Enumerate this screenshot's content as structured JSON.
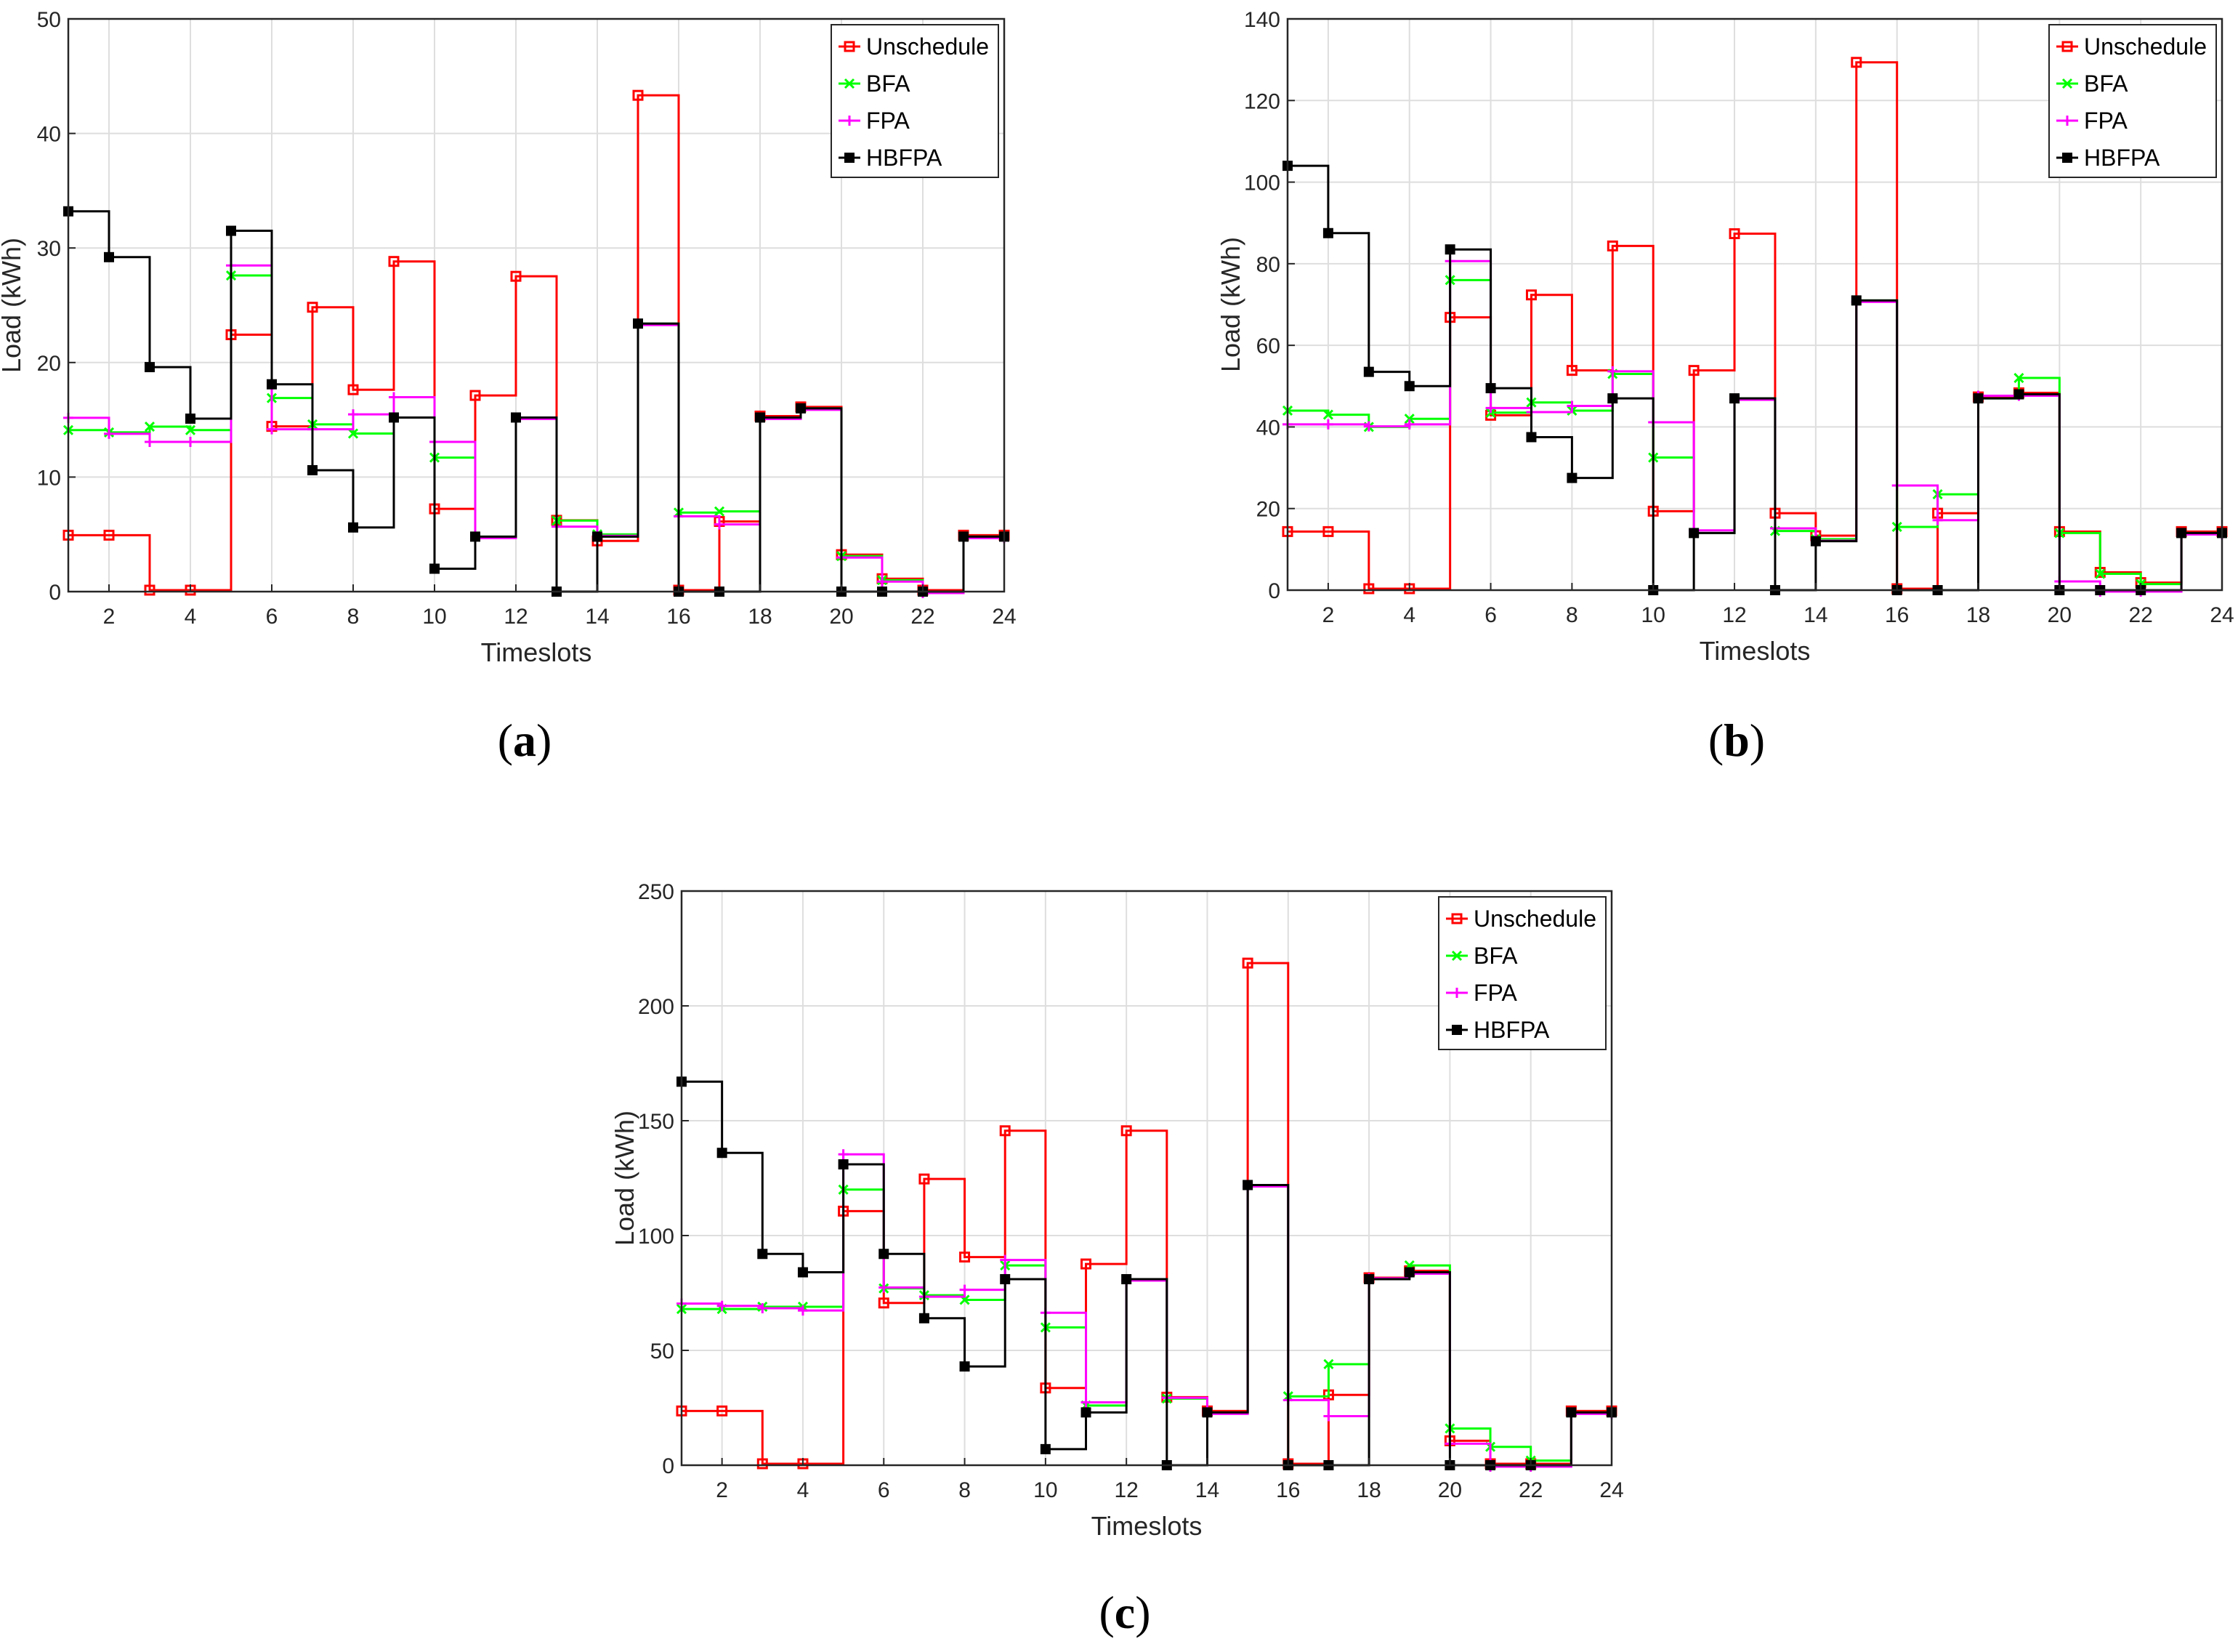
{
  "series_colors": {
    "Unschedule": "#ff0000",
    "BFA": "#00ff00",
    "FPA": "#ff00ff",
    "HBFPA": "#000000"
  },
  "chart_data": [
    {
      "type": "line",
      "panel_label": "a",
      "title": "",
      "xlabel": "Timeslots",
      "ylabel": "Load (kWh)",
      "xlim": [
        1,
        24
      ],
      "ylim": [
        0,
        50
      ],
      "xticks": [
        2,
        4,
        6,
        8,
        10,
        12,
        14,
        16,
        18,
        20,
        22,
        24
      ],
      "yticks": [
        0,
        10,
        20,
        30,
        40,
        50
      ],
      "grid": true,
      "legend_position": "top-right",
      "x": [
        1,
        2,
        3,
        4,
        5,
        6,
        7,
        8,
        9,
        10,
        11,
        12,
        13,
        14,
        15,
        16,
        17,
        18,
        19,
        20,
        21,
        22,
        23,
        24
      ],
      "series": [
        {
          "name": "Unschedule",
          "values": [
            4.8,
            4.8,
            0,
            0,
            22.3,
            14.3,
            24.7,
            17.5,
            28.7,
            7.1,
            17.0,
            27.4,
            6.1,
            4.3,
            43.2,
            0,
            6.0,
            15.2,
            16.0,
            3.1,
            1.0,
            0,
            4.8,
            4.8
          ]
        },
        {
          "name": "BFA",
          "values": [
            14.1,
            13.9,
            14.4,
            14.1,
            27.6,
            16.9,
            14.6,
            13.8,
            15.2,
            11.7,
            4.8,
            15.2,
            6.2,
            5.0,
            23.4,
            6.9,
            7.0,
            15.2,
            16.0,
            3.1,
            1.0,
            0,
            4.8,
            4.8
          ]
        },
        {
          "name": "FPA",
          "values": [
            15.3,
            13.9,
            13.2,
            13.2,
            28.6,
            14.3,
            14.3,
            15.6,
            17.1,
            13.2,
            4.8,
            15.2,
            5.8,
            5.0,
            23.4,
            6.7,
            6.0,
            15.2,
            16.0,
            3.1,
            1.0,
            0,
            4.8,
            4.8
          ]
        },
        {
          "name": "HBFPA",
          "values": [
            33.2,
            29.2,
            19.6,
            15.1,
            31.5,
            18.1,
            10.6,
            5.6,
            15.2,
            2.0,
            4.8,
            15.2,
            0,
            4.8,
            23.4,
            0,
            0,
            15.2,
            16.0,
            0,
            0,
            0,
            4.8,
            4.8
          ]
        }
      ]
    },
    {
      "type": "line",
      "panel_label": "b",
      "title": "",
      "xlabel": "Timeslots",
      "ylabel": "Load (kWh)",
      "xlim": [
        1,
        24
      ],
      "ylim": [
        0,
        140
      ],
      "xticks": [
        2,
        4,
        6,
        8,
        10,
        12,
        14,
        16,
        18,
        20,
        22,
        24
      ],
      "yticks": [
        0,
        20,
        40,
        60,
        80,
        100,
        120,
        140
      ],
      "grid": true,
      "legend_position": "top-right",
      "x": [
        1,
        2,
        3,
        4,
        5,
        6,
        7,
        8,
        9,
        10,
        11,
        12,
        13,
        14,
        15,
        16,
        17,
        18,
        19,
        20,
        21,
        22,
        23,
        24
      ],
      "series": [
        {
          "name": "Unschedule",
          "values": [
            14,
            14,
            0,
            0,
            66.5,
            42.5,
            72,
            53.5,
            84,
            19,
            53.5,
            87,
            18.5,
            13,
            129,
            0,
            18.5,
            47,
            48,
            14,
            4,
            1.5,
            14,
            14
          ]
        },
        {
          "name": "BFA",
          "values": [
            44,
            43,
            40,
            42,
            76,
            43.5,
            46,
            44,
            53,
            32.5,
            14,
            47,
            14.5,
            12.5,
            71,
            15.5,
            23.5,
            47,
            52,
            14,
            4,
            1.5,
            14,
            14
          ]
        },
        {
          "name": "FPA",
          "values": [
            41,
            41,
            40.5,
            41,
            81,
            45,
            44,
            45.5,
            54,
            41.5,
            15,
            47,
            15.5,
            12.5,
            71,
            26,
            17.5,
            48,
            48,
            2.5,
            0,
            0,
            14,
            14
          ]
        },
        {
          "name": "HBFPA",
          "values": [
            104,
            87.5,
            53.5,
            50,
            83.5,
            49.5,
            37.5,
            27.5,
            47,
            0,
            14,
            47,
            0,
            12,
            71,
            0,
            0,
            47,
            48,
            0,
            0,
            0,
            14,
            14
          ]
        }
      ]
    },
    {
      "type": "line",
      "panel_label": "c",
      "title": "",
      "xlabel": "Timeslots",
      "ylabel": "Load (kWh)",
      "xlim": [
        1,
        24
      ],
      "ylim": [
        0,
        250
      ],
      "xticks": [
        2,
        4,
        6,
        8,
        10,
        12,
        14,
        16,
        18,
        20,
        22,
        24
      ],
      "yticks": [
        0,
        50,
        100,
        150,
        200,
        250
      ],
      "grid": true,
      "legend_position": "top-right",
      "x": [
        1,
        2,
        3,
        4,
        5,
        6,
        7,
        8,
        9,
        10,
        11,
        12,
        13,
        14,
        15,
        16,
        17,
        18,
        19,
        20,
        21,
        22,
        23,
        24
      ],
      "series": [
        {
          "name": "Unschedule",
          "values": [
            23,
            23,
            0,
            0,
            110,
            70,
            124,
            90,
            145,
            33,
            87,
            145,
            29,
            23,
            218,
            0,
            30,
            81,
            84,
            10,
            0,
            0,
            23,
            23
          ]
        },
        {
          "name": "BFA",
          "values": [
            68,
            68,
            69,
            69,
            120,
            77,
            74,
            72,
            87,
            60,
            26,
            81,
            29,
            23,
            122,
            30,
            44,
            81,
            87,
            16,
            8,
            2,
            23,
            23
          ]
        },
        {
          "name": "FPA",
          "values": [
            71,
            70,
            69,
            68,
            136,
            78,
            74,
            77,
            90,
            67,
            28,
            81,
            30,
            23,
            122,
            29,
            22,
            82,
            84,
            10,
            0,
            0,
            23,
            23
          ]
        },
        {
          "name": "HBFPA",
          "values": [
            167,
            136,
            92,
            84,
            131,
            92,
            64,
            43,
            81,
            7,
            23,
            81,
            0,
            23,
            122,
            0,
            0,
            81,
            84,
            0,
            0,
            0,
            23,
            23
          ]
        }
      ]
    }
  ]
}
